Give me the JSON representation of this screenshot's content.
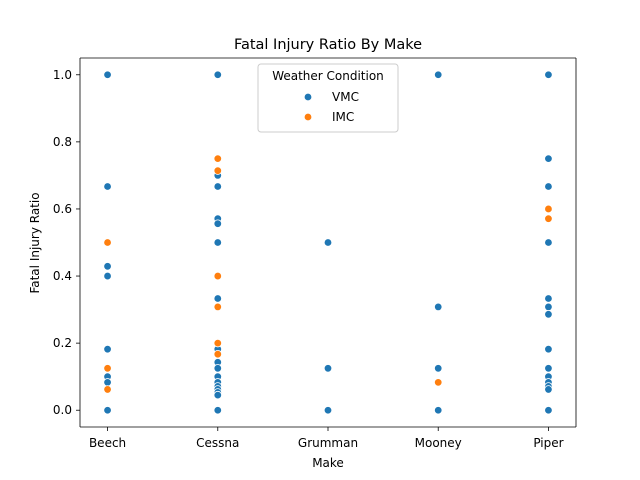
{
  "chart_data": {
    "type": "scatter",
    "title": "Fatal Injury Ratio By Make",
    "xlabel": "Make",
    "ylabel": "Fatal Injury Ratio",
    "categories": [
      "Beech",
      "Cessna",
      "Grumman",
      "Mooney",
      "Piper"
    ],
    "ylim": [
      -0.05,
      1.05
    ],
    "yticks": [
      "0.0",
      "0.2",
      "0.4",
      "0.6",
      "0.8",
      "1.0"
    ],
    "grid": false,
    "legend": {
      "title": "Weather Condition",
      "placement": "top-center"
    },
    "series": [
      {
        "name": "VMC",
        "color": "#1f77b4",
        "points": [
          {
            "x": "Beech",
            "y": 1.0
          },
          {
            "x": "Beech",
            "y": 0.667
          },
          {
            "x": "Beech",
            "y": 0.429
          },
          {
            "x": "Beech",
            "y": 0.4
          },
          {
            "x": "Beech",
            "y": 0.182
          },
          {
            "x": "Beech",
            "y": 0.1
          },
          {
            "x": "Beech",
            "y": 0.083
          },
          {
            "x": "Beech",
            "y": 0.0
          },
          {
            "x": "Cessna",
            "y": 1.0
          },
          {
            "x": "Cessna",
            "y": 0.7
          },
          {
            "x": "Cessna",
            "y": 0.667
          },
          {
            "x": "Cessna",
            "y": 0.571
          },
          {
            "x": "Cessna",
            "y": 0.556
          },
          {
            "x": "Cessna",
            "y": 0.5
          },
          {
            "x": "Cessna",
            "y": 0.4
          },
          {
            "x": "Cessna",
            "y": 0.333
          },
          {
            "x": "Cessna",
            "y": 0.182
          },
          {
            "x": "Cessna",
            "y": 0.143
          },
          {
            "x": "Cessna",
            "y": 0.125
          },
          {
            "x": "Cessna",
            "y": 0.1
          },
          {
            "x": "Cessna",
            "y": 0.083
          },
          {
            "x": "Cessna",
            "y": 0.071
          },
          {
            "x": "Cessna",
            "y": 0.062
          },
          {
            "x": "Cessna",
            "y": 0.053
          },
          {
            "x": "Cessna",
            "y": 0.045
          },
          {
            "x": "Cessna",
            "y": 0.0
          },
          {
            "x": "Grumman",
            "y": 0.5
          },
          {
            "x": "Grumman",
            "y": 0.125
          },
          {
            "x": "Grumman",
            "y": 0.0
          },
          {
            "x": "Mooney",
            "y": 1.0
          },
          {
            "x": "Mooney",
            "y": 0.308
          },
          {
            "x": "Mooney",
            "y": 0.125
          },
          {
            "x": "Mooney",
            "y": 0.0
          },
          {
            "x": "Piper",
            "y": 1.0
          },
          {
            "x": "Piper",
            "y": 0.75
          },
          {
            "x": "Piper",
            "y": 0.667
          },
          {
            "x": "Piper",
            "y": 0.5
          },
          {
            "x": "Piper",
            "y": 0.333
          },
          {
            "x": "Piper",
            "y": 0.308
          },
          {
            "x": "Piper",
            "y": 0.286
          },
          {
            "x": "Piper",
            "y": 0.182
          },
          {
            "x": "Piper",
            "y": 0.125
          },
          {
            "x": "Piper",
            "y": 0.1
          },
          {
            "x": "Piper",
            "y": 0.083
          },
          {
            "x": "Piper",
            "y": 0.071
          },
          {
            "x": "Piper",
            "y": 0.062
          },
          {
            "x": "Piper",
            "y": 0.0
          }
        ]
      },
      {
        "name": "IMC",
        "color": "#ff7f0e",
        "points": [
          {
            "x": "Beech",
            "y": 0.5
          },
          {
            "x": "Beech",
            "y": 0.125
          },
          {
            "x": "Beech",
            "y": 0.062
          },
          {
            "x": "Cessna",
            "y": 0.75
          },
          {
            "x": "Cessna",
            "y": 0.714
          },
          {
            "x": "Cessna",
            "y": 0.4
          },
          {
            "x": "Cessna",
            "y": 0.308
          },
          {
            "x": "Cessna",
            "y": 0.2
          },
          {
            "x": "Cessna",
            "y": 0.167
          },
          {
            "x": "Mooney",
            "y": 0.083
          },
          {
            "x": "Piper",
            "y": 0.6
          },
          {
            "x": "Piper",
            "y": 0.571
          }
        ]
      }
    ]
  }
}
